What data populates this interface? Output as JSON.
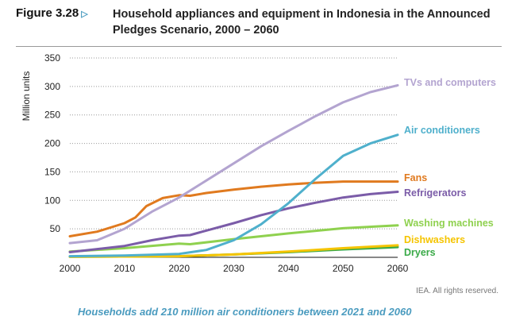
{
  "figure": {
    "number": "Figure 3.28",
    "arrow_icon": "triangle-right-icon",
    "title": "Household appliances and equipment in Indonesia in the Announced Pledges Scenario, 2000 – 2060"
  },
  "credit": "IEA. All rights reserved.",
  "caption": "Households add 210 million air conditioners between 2021 and 2060",
  "chart_data": {
    "type": "line",
    "title": "Household appliances and equipment in Indonesia in the Announced Pledges Scenario, 2000 – 2060",
    "xlabel": "",
    "ylabel": "Million units",
    "xlim": [
      2000,
      2060
    ],
    "ylim": [
      0,
      350
    ],
    "xticks": [
      2000,
      2010,
      2020,
      2030,
      2040,
      2050,
      2060
    ],
    "yticks": [
      50,
      100,
      150,
      200,
      250,
      300,
      350
    ],
    "grid": "horizontal dotted",
    "legend": "direct labels at right",
    "series": [
      {
        "name": "TVs and computers",
        "color": "#b3a4d0",
        "x": [
          2000,
          2005,
          2010,
          2015,
          2020,
          2025,
          2030,
          2035,
          2040,
          2045,
          2050,
          2055,
          2060
        ],
        "y": [
          25,
          30,
          50,
          80,
          105,
          135,
          165,
          195,
          222,
          248,
          272,
          290,
          302
        ]
      },
      {
        "name": "Air conditioners",
        "color": "#4fb0cc",
        "x": [
          2000,
          2010,
          2020,
          2025,
          2030,
          2035,
          2040,
          2045,
          2050,
          2055,
          2060
        ],
        "y": [
          2,
          3,
          6,
          13,
          30,
          58,
          95,
          138,
          178,
          200,
          215
        ]
      },
      {
        "name": "Fans",
        "color": "#e07a1f",
        "x": [
          2000,
          2005,
          2010,
          2012,
          2014,
          2017,
          2020,
          2022,
          2025,
          2030,
          2035,
          2040,
          2045,
          2050,
          2060
        ],
        "y": [
          37,
          45,
          60,
          70,
          90,
          104,
          109,
          108,
          113,
          119,
          124,
          128,
          131,
          133,
          133
        ]
      },
      {
        "name": "Refrigerators",
        "color": "#7b5ca8",
        "x": [
          2000,
          2010,
          2015,
          2020,
          2022,
          2025,
          2030,
          2035,
          2040,
          2045,
          2050,
          2055,
          2060
        ],
        "y": [
          9,
          20,
          30,
          38,
          39,
          47,
          60,
          74,
          86,
          96,
          105,
          111,
          115
        ]
      },
      {
        "name": "Washing machines",
        "color": "#8fd14f",
        "x": [
          2000,
          2010,
          2020,
          2022,
          2030,
          2040,
          2050,
          2060
        ],
        "y": [
          10,
          16,
          24,
          23,
          32,
          42,
          51,
          56
        ]
      },
      {
        "name": "Dishwashers",
        "color": "#f5c400",
        "x": [
          2000,
          2020,
          2030,
          2040,
          2050,
          2060
        ],
        "y": [
          1,
          2,
          5,
          10,
          16,
          21
        ]
      },
      {
        "name": "Dryers",
        "color": "#3aaa48",
        "x": [
          2000,
          2020,
          2030,
          2040,
          2050,
          2060
        ],
        "y": [
          1,
          2,
          5,
          9,
          14,
          18
        ]
      }
    ]
  }
}
